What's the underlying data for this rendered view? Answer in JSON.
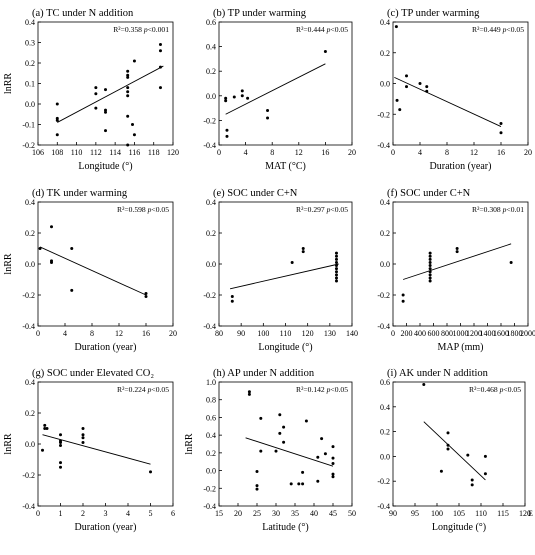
{
  "chart_data": [
    {
      "type": "scatter",
      "title": "(a) TC under N addition",
      "annotation": {
        "r2": "R²=0.358",
        "p_prefix": "p",
        "p_rest": "<0.001"
      },
      "xlabel": "Longitude (°)",
      "ylabel": "lnRR",
      "xlim": [
        106,
        120
      ],
      "ylim": [
        -0.2,
        0.4
      ],
      "xticks": [
        106,
        108,
        110,
        112,
        114,
        116,
        118,
        120
      ],
      "yticks": [
        -0.2,
        -0.1,
        0.0,
        0.1,
        0.2,
        0.3,
        0.4
      ],
      "ytick_labels": [
        "-0.2",
        "-0.1",
        "0.0",
        "0.1",
        "0.2",
        "0.3",
        "0.4"
      ],
      "points": [
        [
          108,
          0.0
        ],
        [
          108,
          -0.07
        ],
        [
          108,
          -0.08
        ],
        [
          108,
          -0.15
        ],
        [
          112,
          0.08
        ],
        [
          112,
          0.05
        ],
        [
          112,
          -0.02
        ],
        [
          113,
          0.07
        ],
        [
          113,
          -0.03
        ],
        [
          113,
          -0.04
        ],
        [
          113,
          -0.13
        ],
        [
          115.3,
          0.16
        ],
        [
          115.3,
          0.14
        ],
        [
          115.3,
          0.13
        ],
        [
          115.3,
          0.08
        ],
        [
          115.3,
          0.06
        ],
        [
          115.3,
          0.04
        ],
        [
          115.3,
          -0.06
        ],
        [
          115.3,
          -0.2
        ],
        [
          115.8,
          -0.1
        ],
        [
          116,
          0.21
        ],
        [
          116,
          -0.15
        ],
        [
          118.7,
          0.29
        ],
        [
          118.7,
          0.26
        ],
        [
          118.7,
          0.18
        ],
        [
          118.7,
          0.08
        ]
      ],
      "fit": [
        [
          108,
          -0.09
        ],
        [
          119,
          0.185
        ]
      ]
    },
    {
      "type": "scatter",
      "title": "(b) TP under warming",
      "annotation": {
        "r2": "R²=0.444",
        "p_prefix": "p",
        "p_rest": "<0.05"
      },
      "xlabel": "MAT (°C)",
      "ylabel": "",
      "xlim": [
        0,
        20
      ],
      "ylim": [
        -0.4,
        0.6
      ],
      "xticks": [
        0,
        4,
        8,
        12,
        16,
        20
      ],
      "yticks": [
        -0.4,
        -0.2,
        0.0,
        0.2,
        0.4,
        0.6
      ],
      "ytick_labels": [
        "-0.4",
        "-0.2",
        "0.0",
        "0.2",
        "0.4",
        "0.6"
      ],
      "points": [
        [
          1,
          -0.02
        ],
        [
          1,
          -0.04
        ],
        [
          1.2,
          -0.28
        ],
        [
          1.2,
          -0.33
        ],
        [
          2.3,
          -0.01
        ],
        [
          3.5,
          0.04
        ],
        [
          3.5,
          0.0
        ],
        [
          4.3,
          -0.02
        ],
        [
          7.3,
          -0.12
        ],
        [
          7.3,
          -0.18
        ],
        [
          16,
          0.36
        ]
      ],
      "fit": [
        [
          1,
          -0.15
        ],
        [
          16,
          0.26
        ]
      ]
    },
    {
      "type": "scatter",
      "title": "(c) TP under warming",
      "annotation": {
        "r2": "R²=0.449",
        "p_prefix": "p",
        "p_rest": "<0.05"
      },
      "xlabel": "Duration (year)",
      "ylabel": "",
      "xlim": [
        0,
        20
      ],
      "ylim": [
        -0.4,
        0.4
      ],
      "xticks": [
        0,
        4,
        8,
        12,
        16,
        20
      ],
      "yticks": [
        -0.4,
        -0.2,
        0.0,
        0.2,
        0.4
      ],
      "ytick_labels": [
        "-0.4",
        "-0.2",
        "0.0",
        "0.2",
        "0.4"
      ],
      "points": [
        [
          0.5,
          0.37
        ],
        [
          0.6,
          -0.11
        ],
        [
          1,
          -0.17
        ],
        [
          2,
          0.05
        ],
        [
          2,
          -0.02
        ],
        [
          4,
          0.0
        ],
        [
          5,
          -0.02
        ],
        [
          5,
          -0.05
        ],
        [
          16,
          -0.26
        ],
        [
          16,
          -0.32
        ]
      ],
      "fit": [
        [
          0.2,
          0.04
        ],
        [
          16,
          -0.28
        ]
      ]
    },
    {
      "type": "scatter",
      "title": "(d) TK under warming",
      "annotation": {
        "r2": "R²=0.598",
        "p_prefix": "p",
        "p_rest": "<0.05"
      },
      "xlabel": "Duration (year)",
      "ylabel": "lnRR",
      "xlim": [
        0,
        20
      ],
      "ylim": [
        -0.4,
        0.4
      ],
      "xticks": [
        0,
        4,
        8,
        12,
        16,
        20
      ],
      "yticks": [
        -0.4,
        -0.2,
        0.0,
        0.2,
        0.4
      ],
      "ytick_labels": [
        "-0.4",
        "-0.2",
        "0.0",
        "0.2",
        "0.4"
      ],
      "points": [
        [
          0.3,
          0.1
        ],
        [
          2,
          0.24
        ],
        [
          2,
          0.02
        ],
        [
          2,
          0.01
        ],
        [
          5,
          0.1
        ],
        [
          5,
          -0.17
        ],
        [
          16,
          -0.19
        ],
        [
          16,
          -0.21
        ]
      ],
      "fit": [
        [
          0.3,
          0.11
        ],
        [
          16,
          -0.2
        ]
      ]
    },
    {
      "type": "scatter",
      "title": "(e) SOC under C+N",
      "annotation": {
        "r2": "R²=0.297",
        "p_prefix": "p",
        "p_rest": "<0.05"
      },
      "xlabel": "Longitude (°)",
      "ylabel": "",
      "xlim": [
        80,
        140
      ],
      "ylim": [
        -0.4,
        0.4
      ],
      "xticks": [
        80,
        90,
        100,
        110,
        120,
        130,
        140
      ],
      "yticks": [
        -0.4,
        -0.2,
        0.0,
        0.2,
        0.4
      ],
      "ytick_labels": [
        "-0.4",
        "-0.2",
        "0.0",
        "0.2",
        "0.4"
      ],
      "points": [
        [
          86,
          -0.21
        ],
        [
          86,
          -0.24
        ],
        [
          113,
          0.01
        ],
        [
          118,
          0.08
        ],
        [
          118,
          0.1
        ],
        [
          133,
          0.07
        ],
        [
          133,
          0.05
        ],
        [
          133,
          0.03
        ],
        [
          133,
          0.01
        ],
        [
          133,
          -0.01
        ],
        [
          133,
          -0.03
        ],
        [
          133,
          -0.05
        ],
        [
          133,
          -0.07
        ],
        [
          133,
          -0.09
        ],
        [
          133,
          -0.11
        ]
      ],
      "fit": [
        [
          85,
          -0.16
        ],
        [
          134,
          0.0
        ]
      ]
    },
    {
      "type": "scatter",
      "title": "(f) SOC under C+N",
      "annotation": {
        "r2": "R²=0.308",
        "p_prefix": "p",
        "p_rest": "<0.01"
      },
      "xlabel": "MAP (mm)",
      "ylabel": "",
      "xlim": [
        0,
        2000
      ],
      "ylim": [
        -0.4,
        0.4
      ],
      "xticks": [
        0,
        200,
        400,
        600,
        800,
        1000,
        1200,
        1400,
        1600,
        1800,
        2000
      ],
      "yticks": [
        -0.4,
        -0.2,
        0.0,
        0.2,
        0.4
      ],
      "ytick_labels": [
        "-0.4",
        "-0.2",
        "0.0",
        "0.2",
        "0.4"
      ],
      "points": [
        [
          150,
          -0.2
        ],
        [
          150,
          -0.24
        ],
        [
          550,
          0.07
        ],
        [
          550,
          0.05
        ],
        [
          550,
          0.03
        ],
        [
          550,
          0.01
        ],
        [
          550,
          -0.01
        ],
        [
          550,
          -0.03
        ],
        [
          550,
          -0.05
        ],
        [
          550,
          -0.07
        ],
        [
          550,
          -0.09
        ],
        [
          550,
          -0.11
        ],
        [
          950,
          0.08
        ],
        [
          950,
          0.1
        ],
        [
          1750,
          0.01
        ]
      ],
      "fit": [
        [
          150,
          -0.1
        ],
        [
          1750,
          0.13
        ]
      ]
    },
    {
      "type": "scatter",
      "title": "(g) SOC under Elevated CO₂",
      "annotation": {
        "r2": "R²=0.224",
        "p_prefix": "p",
        "p_rest": "<0.05"
      },
      "xlabel": "Duration (year)",
      "ylabel": "lnRR",
      "xlim": [
        0,
        6
      ],
      "ylim": [
        -0.4,
        0.4
      ],
      "xticks": [
        0,
        1,
        2,
        3,
        4,
        5,
        6
      ],
      "yticks": [
        -0.4,
        -0.2,
        0.0,
        0.2,
        0.4
      ],
      "ytick_labels": [
        "-0.4",
        "-0.2",
        "0.0",
        "0.2",
        "0.4"
      ],
      "points": [
        [
          0.2,
          -0.04
        ],
        [
          0.3,
          0.12
        ],
        [
          0.3,
          0.1
        ],
        [
          0.4,
          0.1
        ],
        [
          1,
          0.06
        ],
        [
          1,
          0.02
        ],
        [
          1,
          0.01
        ],
        [
          1,
          -0.01
        ],
        [
          1,
          -0.12
        ],
        [
          1,
          -0.15
        ],
        [
          2,
          0.1
        ],
        [
          2,
          0.06
        ],
        [
          2,
          0.04
        ],
        [
          2,
          0.01
        ],
        [
          5,
          -0.18
        ]
      ],
      "fit": [
        [
          0.2,
          0.06
        ],
        [
          5,
          -0.13
        ]
      ]
    },
    {
      "type": "scatter",
      "title": "(h) AP under N addition",
      "annotation": {
        "r2": "R²=0.142",
        "p_prefix": "p",
        "p_rest": "<0.05"
      },
      "xlabel": "Latitude (°)",
      "ylabel": "lnRR",
      "xlim": [
        15,
        50
      ],
      "ylim": [
        -0.4,
        1.0
      ],
      "xticks": [
        15,
        20,
        25,
        30,
        35,
        40,
        45,
        50
      ],
      "yticks": [
        -0.4,
        -0.2,
        0.0,
        0.2,
        0.4,
        0.6,
        0.8,
        1.0
      ],
      "ytick_labels": [
        "-0.4",
        "-0.2",
        "0.0",
        "0.2",
        "0.4",
        "0.6",
        "0.8",
        "1.0"
      ],
      "points": [
        [
          23,
          0.89
        ],
        [
          23,
          0.86
        ],
        [
          25,
          -0.01
        ],
        [
          25,
          -0.17
        ],
        [
          25,
          -0.21
        ],
        [
          26,
          0.59
        ],
        [
          26,
          0.22
        ],
        [
          30,
          0.22
        ],
        [
          31,
          0.63
        ],
        [
          31,
          0.42
        ],
        [
          32,
          0.49
        ],
        [
          32,
          0.32
        ],
        [
          34,
          -0.15
        ],
        [
          36,
          -0.15
        ],
        [
          37,
          -0.02
        ],
        [
          37,
          -0.15
        ],
        [
          38,
          0.56
        ],
        [
          41,
          0.15
        ],
        [
          41,
          -0.12
        ],
        [
          42,
          0.36
        ],
        [
          43,
          0.19
        ],
        [
          45,
          0.27
        ],
        [
          45,
          0.14
        ],
        [
          45,
          0.08
        ],
        [
          45,
          -0.04
        ],
        [
          45,
          -0.07
        ]
      ],
      "fit": [
        [
          22,
          0.37
        ],
        [
          45,
          0.05
        ]
      ]
    },
    {
      "type": "scatter",
      "title": "(i) AK under N addition",
      "annotation": {
        "r2": "R²=0.468",
        "p_prefix": "p",
        "p_rest": "<0.05"
      },
      "xlabel": "Longitude (°)",
      "ylabel": "",
      "xlim": [
        90,
        120
      ],
      "ylim": [
        -0.4,
        0.6
      ],
      "xticks": [
        90,
        95,
        100,
        105,
        110,
        115,
        120
      ],
      "yticks": [
        -0.4,
        -0.2,
        0.0,
        0.2,
        0.4,
        0.6
      ],
      "ytick_labels": [
        "-0.4",
        "-0.2",
        "0.0",
        "0.2",
        "0.4",
        "0.6"
      ],
      "x_suffix": "E",
      "points": [
        [
          97,
          0.58
        ],
        [
          101,
          -0.12
        ],
        [
          102.5,
          0.19
        ],
        [
          102.5,
          0.09
        ],
        [
          102.5,
          0.06
        ],
        [
          107,
          0.01
        ],
        [
          108,
          -0.19
        ],
        [
          108,
          -0.23
        ],
        [
          111,
          0.0
        ],
        [
          111,
          -0.14
        ]
      ],
      "fit": [
        [
          97,
          0.28
        ],
        [
          111,
          -0.19
        ]
      ]
    }
  ]
}
